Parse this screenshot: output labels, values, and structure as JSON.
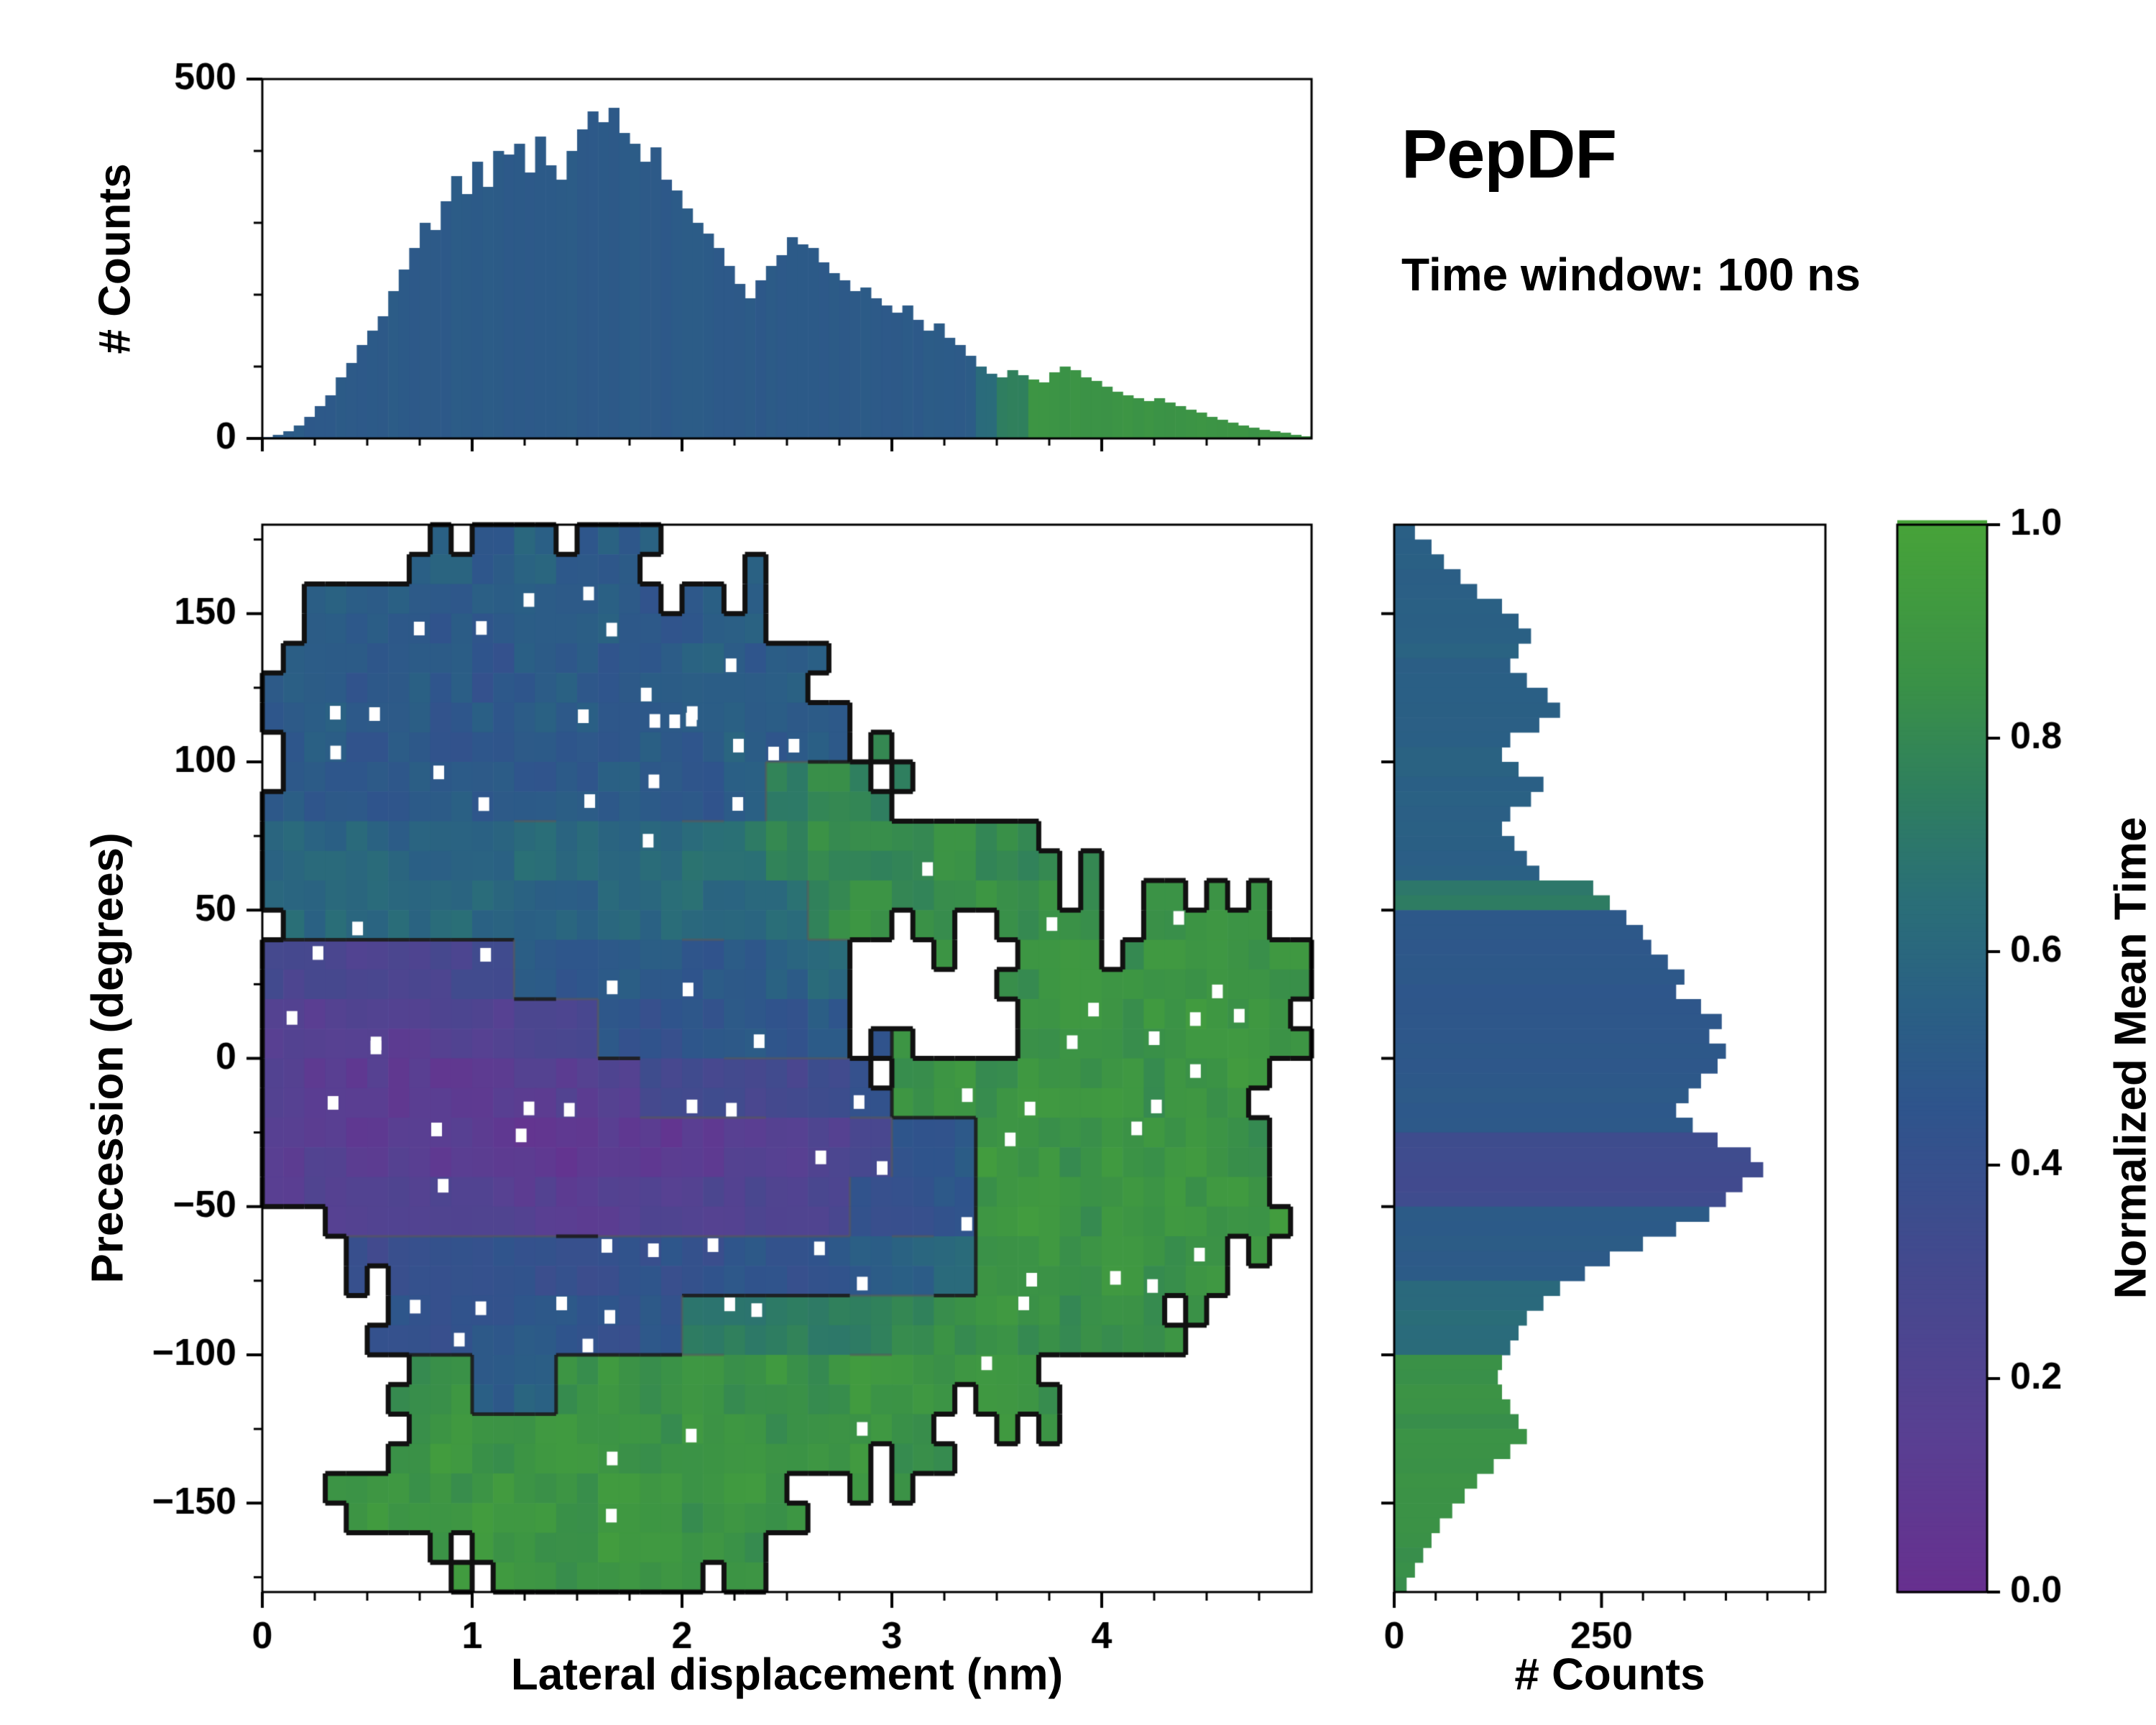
{
  "header": {
    "title": "PepDF",
    "subtitle": "Time window: 100 ns"
  },
  "colors": {
    "background": "#ffffff",
    "frame": "#000000",
    "outline": "#111111",
    "contour_dark": "#1c1c1c",
    "contour_gray": "#5a5a5a"
  },
  "colormap": {
    "label": "Normalized Mean Time",
    "ticks": [
      "0.0",
      "0.2",
      "0.4",
      "0.6",
      "0.8",
      "1.0"
    ],
    "tick_values": [
      0,
      0.2,
      0.4,
      0.6,
      0.8,
      1.0
    ],
    "stops": [
      [
        0.0,
        "#67308f"
      ],
      [
        0.15,
        "#584092"
      ],
      [
        0.3,
        "#44498e"
      ],
      [
        0.45,
        "#2f548c"
      ],
      [
        0.55,
        "#2a6084"
      ],
      [
        0.65,
        "#2a6f77"
      ],
      [
        0.75,
        "#2f7f5e"
      ],
      [
        0.85,
        "#3a9147"
      ],
      [
        1.0,
        "#47a339"
      ]
    ]
  },
  "chart_data": [
    {
      "id": "top_histogram",
      "type": "bar",
      "ylabel": "# Counts",
      "xlim": [
        0,
        5
      ],
      "ylim": [
        0,
        500
      ],
      "yticks": [
        0,
        500
      ],
      "xticks": [
        0,
        1,
        2,
        3,
        4
      ],
      "x_start": 0,
      "bin_width": 0.05,
      "values": [
        2,
        5,
        10,
        18,
        30,
        45,
        60,
        85,
        105,
        130,
        150,
        170,
        205,
        235,
        265,
        300,
        290,
        330,
        365,
        340,
        385,
        350,
        400,
        395,
        410,
        370,
        420,
        380,
        360,
        400,
        430,
        455,
        440,
        460,
        425,
        410,
        385,
        405,
        360,
        345,
        320,
        300,
        285,
        265,
        240,
        215,
        195,
        220,
        240,
        255,
        280,
        270,
        265,
        245,
        230,
        220,
        205,
        210,
        195,
        185,
        175,
        185,
        165,
        150,
        160,
        140,
        130,
        115,
        100,
        90,
        85,
        95,
        88,
        82,
        78,
        92,
        100,
        95,
        85,
        80,
        72,
        65,
        60,
        56,
        52,
        56,
        50,
        45,
        40,
        36,
        30,
        26,
        22,
        18,
        15,
        12,
        10,
        8,
        5,
        3
      ],
      "mean_segments": [
        {
          "to_x": 3.4,
          "value": 0.5
        },
        {
          "to_x": 3.5,
          "value": 0.62
        },
        {
          "to_x": 3.65,
          "value": 0.75
        },
        {
          "to_x": 5.0,
          "value": 0.87
        }
      ]
    },
    {
      "id": "main_heatmap",
      "type": "heatmap",
      "xlabel": "Lateral displacement (nm)",
      "ylabel": "Precession (degrees)",
      "xlim": [
        0,
        5
      ],
      "ylim": [
        -180,
        180
      ],
      "xticks": [
        0,
        1,
        2,
        3,
        4
      ],
      "yticks": [
        -150,
        -100,
        -50,
        0,
        50,
        100,
        150
      ],
      "value_meaning": "normalized mean time",
      "grid": {
        "x0": 0,
        "dx": 0.2,
        "y0": 180,
        "dy": -20,
        "cols": 25,
        "rows": 18,
        "values": [
          [
            null,
            null,
            null,
            null,
            0.55,
            0.5,
            0.55,
            0.48,
            0.52,
            null,
            null,
            null,
            null,
            null,
            null,
            null,
            null,
            null,
            null,
            null,
            null,
            null,
            null,
            null,
            null
          ],
          [
            null,
            0.55,
            0.5,
            0.52,
            0.48,
            0.5,
            0.55,
            0.5,
            0.52,
            0.48,
            0.5,
            0.55,
            null,
            null,
            null,
            null,
            null,
            null,
            null,
            null,
            null,
            null,
            null,
            null,
            null
          ],
          [
            0.52,
            0.5,
            0.48,
            0.52,
            0.5,
            0.45,
            0.5,
            0.52,
            0.48,
            0.5,
            0.55,
            0.5,
            0.52,
            null,
            null,
            null,
            null,
            null,
            null,
            null,
            null,
            null,
            null,
            null,
            null
          ],
          [
            0.5,
            0.52,
            0.48,
            0.5,
            0.45,
            0.5,
            0.52,
            0.5,
            0.48,
            0.52,
            0.5,
            0.55,
            0.5,
            0.52,
            null,
            null,
            null,
            null,
            null,
            null,
            null,
            null,
            null,
            null,
            null
          ],
          [
            0.52,
            0.5,
            0.48,
            0.5,
            0.52,
            0.5,
            0.48,
            0.5,
            0.52,
            0.5,
            0.48,
            0.55,
            0.75,
            0.8,
            0.78,
            null,
            null,
            null,
            null,
            null,
            null,
            null,
            null,
            null,
            null
          ],
          [
            0.6,
            0.58,
            0.6,
            0.55,
            0.58,
            0.6,
            0.62,
            0.6,
            0.58,
            0.62,
            0.65,
            0.68,
            0.78,
            0.82,
            0.8,
            0.82,
            0.85,
            0.82,
            0.8,
            null,
            null,
            null,
            null,
            null,
            null
          ],
          [
            0.62,
            0.6,
            0.58,
            0.6,
            0.62,
            0.6,
            0.58,
            0.56,
            0.58,
            0.6,
            0.62,
            0.6,
            0.65,
            0.8,
            0.85,
            0.82,
            0.85,
            0.88,
            0.85,
            0.82,
            null,
            0.85,
            0.88,
            0.85,
            null
          ],
          [
            0.28,
            0.25,
            0.22,
            0.25,
            0.28,
            0.3,
            0.5,
            0.48,
            0.52,
            0.5,
            0.48,
            0.52,
            0.55,
            0.6,
            null,
            null,
            null,
            null,
            0.85,
            0.88,
            0.85,
            0.9,
            0.88,
            0.85,
            0.88
          ],
          [
            0.18,
            0.15,
            0.18,
            0.15,
            0.2,
            0.18,
            0.22,
            0.25,
            0.45,
            0.42,
            0.45,
            0.48,
            0.45,
            0.5,
            null,
            null,
            null,
            null,
            0.88,
            0.9,
            0.85,
            0.88,
            0.9,
            0.88,
            0.85
          ],
          [
            0.15,
            0.12,
            0.12,
            0.1,
            0.1,
            0.12,
            0.15,
            0.15,
            0.18,
            0.3,
            0.32,
            0.3,
            0.28,
            0.32,
            0.45,
            0.85,
            0.88,
            0.85,
            0.9,
            0.88,
            0.9,
            0.85,
            0.88,
            0.9,
            null
          ],
          [
            0.15,
            0.15,
            0.12,
            0.15,
            0.12,
            0.1,
            0.08,
            0.08,
            0.1,
            0.08,
            0.1,
            0.15,
            0.18,
            0.2,
            0.3,
            0.45,
            0.48,
            0.9,
            0.88,
            0.85,
            0.9,
            0.88,
            0.9,
            0.85,
            null
          ],
          [
            null,
            0.2,
            0.18,
            0.2,
            0.22,
            0.18,
            0.15,
            0.12,
            0.15,
            0.18,
            0.2,
            0.22,
            0.2,
            0.25,
            0.4,
            0.42,
            0.45,
            0.88,
            0.9,
            0.85,
            0.88,
            0.9,
            0.88,
            0.9,
            null
          ],
          [
            null,
            null,
            0.35,
            0.38,
            0.4,
            0.42,
            0.4,
            0.38,
            0.4,
            0.42,
            0.4,
            0.45,
            0.42,
            0.45,
            0.5,
            0.55,
            0.58,
            0.85,
            0.88,
            0.85,
            0.9,
            0.85,
            0.88,
            null,
            null
          ],
          [
            null,
            null,
            null,
            0.45,
            0.42,
            0.45,
            0.48,
            0.45,
            0.42,
            0.45,
            0.7,
            0.72,
            0.75,
            0.72,
            0.75,
            0.78,
            0.85,
            0.88,
            0.85,
            0.82,
            0.85,
            0.85,
            null,
            null,
            null
          ],
          [
            null,
            null,
            null,
            0.85,
            0.88,
            0.5,
            0.55,
            0.85,
            0.88,
            0.85,
            0.9,
            0.85,
            0.88,
            0.85,
            0.9,
            0.88,
            0.85,
            0.88,
            0.85,
            null,
            null,
            null,
            null,
            null,
            null
          ],
          [
            null,
            null,
            null,
            0.88,
            0.9,
            0.85,
            0.88,
            0.9,
            0.88,
            0.85,
            0.9,
            0.88,
            0.85,
            0.88,
            0.9,
            0.85,
            null,
            null,
            null,
            null,
            null,
            null,
            null,
            null,
            null
          ],
          [
            null,
            null,
            0.9,
            0.88,
            0.85,
            0.9,
            0.88,
            0.85,
            0.9,
            0.88,
            0.85,
            0.9,
            0.85,
            null,
            null,
            null,
            null,
            null,
            null,
            null,
            null,
            null,
            null,
            null,
            null
          ],
          [
            null,
            null,
            null,
            null,
            null,
            0.9,
            0.88,
            0.85,
            0.9,
            0.88,
            0.9,
            0.85,
            null,
            null,
            null,
            null,
            null,
            null,
            null,
            null,
            null,
            null,
            null,
            null,
            null
          ]
        ]
      }
    },
    {
      "id": "right_histogram",
      "type": "bar",
      "orientation": "horizontal",
      "xlabel": "# Counts",
      "xlim": [
        0,
        520
      ],
      "xticks": [
        0,
        250
      ],
      "ylim": [
        -180,
        180
      ],
      "y_start": 180,
      "bin_width": 5,
      "values": [
        25,
        45,
        60,
        80,
        100,
        130,
        150,
        165,
        150,
        140,
        160,
        185,
        200,
        175,
        140,
        130,
        150,
        180,
        165,
        140,
        130,
        145,
        160,
        175,
        240,
        260,
        280,
        300,
        310,
        330,
        350,
        340,
        370,
        395,
        380,
        400,
        390,
        370,
        355,
        340,
        360,
        390,
        430,
        445,
        420,
        400,
        380,
        340,
        300,
        260,
        230,
        200,
        180,
        160,
        150,
        140,
        130,
        125,
        130,
        140,
        150,
        160,
        140,
        120,
        100,
        85,
        70,
        55,
        45,
        35,
        25,
        15
      ],
      "mean_segments": [
        {
          "from": 180,
          "to": 60,
          "value": 0.55
        },
        {
          "from": 60,
          "to": 50,
          "value": 0.72
        },
        {
          "from": 50,
          "to": -25,
          "value": 0.48
        },
        {
          "from": -25,
          "to": -50,
          "value": 0.33
        },
        {
          "from": -50,
          "to": -75,
          "value": 0.5
        },
        {
          "from": -75,
          "to": -100,
          "value": 0.62
        },
        {
          "from": -100,
          "to": -180,
          "value": 0.85
        }
      ]
    }
  ]
}
